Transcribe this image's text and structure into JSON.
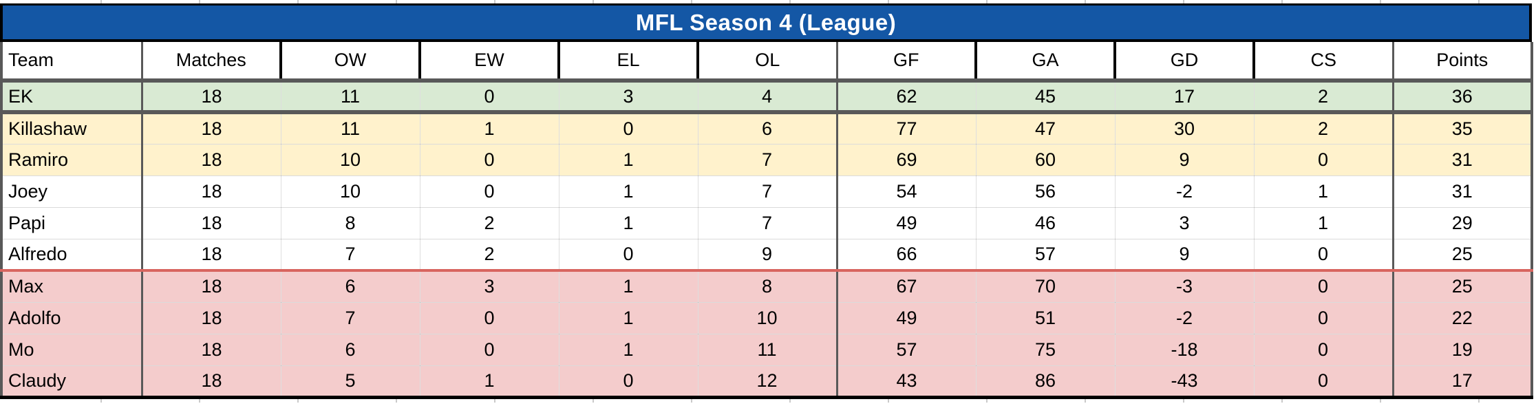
{
  "title": "MFL Season 4 (League)",
  "columns": [
    "Team",
    "Matches",
    "OW",
    "EW",
    "EL",
    "OL",
    "GF",
    "GA",
    "GD",
    "CS",
    "Points"
  ],
  "rows": [
    {
      "team": "EK",
      "zone": "green",
      "stats": [
        "18",
        "11",
        "0",
        "3",
        "4",
        "62",
        "45",
        "17",
        "2",
        "36"
      ]
    },
    {
      "team": "Killashaw",
      "zone": "yellow",
      "stats": [
        "18",
        "11",
        "1",
        "0",
        "6",
        "77",
        "47",
        "30",
        "2",
        "35"
      ]
    },
    {
      "team": "Ramiro",
      "zone": "yellow",
      "stats": [
        "18",
        "10",
        "0",
        "1",
        "7",
        "69",
        "60",
        "9",
        "0",
        "31"
      ]
    },
    {
      "team": "Joey",
      "zone": "white",
      "stats": [
        "18",
        "10",
        "0",
        "1",
        "7",
        "54",
        "56",
        "-2",
        "1",
        "31"
      ]
    },
    {
      "team": "Papi",
      "zone": "white",
      "stats": [
        "18",
        "8",
        "2",
        "1",
        "7",
        "49",
        "46",
        "3",
        "1",
        "29"
      ]
    },
    {
      "team": "Alfredo",
      "zone": "white",
      "stats": [
        "18",
        "7",
        "2",
        "0",
        "9",
        "66",
        "57",
        "9",
        "0",
        "25"
      ]
    },
    {
      "team": "Max",
      "zone": "pink",
      "stats": [
        "18",
        "6",
        "3",
        "1",
        "8",
        "67",
        "70",
        "-3",
        "0",
        "25"
      ]
    },
    {
      "team": "Adolfo",
      "zone": "pink",
      "stats": [
        "18",
        "7",
        "0",
        "1",
        "10",
        "49",
        "51",
        "-2",
        "0",
        "22"
      ]
    },
    {
      "team": "Mo",
      "zone": "pink",
      "stats": [
        "18",
        "6",
        "0",
        "1",
        "11",
        "57",
        "75",
        "-18",
        "0",
        "19"
      ]
    },
    {
      "team": "Claudy",
      "zone": "pink",
      "stats": [
        "18",
        "5",
        "1",
        "0",
        "12",
        "43",
        "86",
        "-43",
        "0",
        "17"
      ]
    }
  ],
  "colors": {
    "title_bg": "#1457a5",
    "title_text": "#ffffff",
    "row_green": "#d9ead3",
    "row_yellow": "#fff2cc",
    "row_white": "#ffffff",
    "row_pink": "#f4cccc",
    "group_border_gray": "#595959",
    "red_separator": "#d8655f",
    "frame_black": "#000000"
  }
}
